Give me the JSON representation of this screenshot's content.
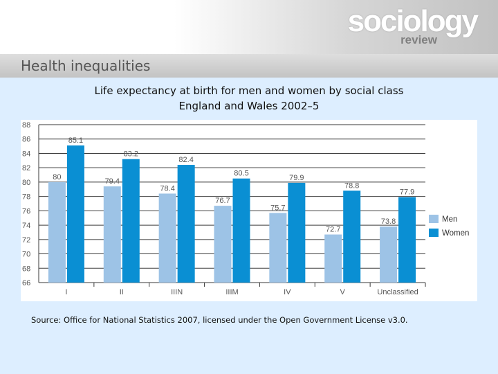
{
  "logo": {
    "main": "sociology",
    "sub": "review"
  },
  "slide_title": "Health inequalities",
  "chart_data": {
    "type": "bar",
    "title": "Life expectancy at birth for men and women by social class",
    "subtitle": "England and Wales 2002–5",
    "categories": [
      "I",
      "II",
      "IIIN",
      "IIIM",
      "IV",
      "V",
      "Unclassified"
    ],
    "series": [
      {
        "name": "Men",
        "color": "#9dc3e6",
        "values": [
          80,
          79.4,
          78.4,
          76.7,
          75.7,
          72.7,
          73.8
        ],
        "labels": [
          "80",
          "79.4",
          "78.4",
          "76.7",
          "75.7",
          "72.7",
          "73.8"
        ]
      },
      {
        "name": "Women",
        "color": "#0a8fd3",
        "values": [
          85.1,
          83.2,
          82.4,
          80.5,
          79.9,
          78.8,
          77.9
        ],
        "labels": [
          "85.1",
          "83.2",
          "82.4",
          "80.5",
          "79.9",
          "78.8",
          "77.9"
        ]
      }
    ],
    "ylim": [
      66,
      88
    ],
    "yticks": [
      "66",
      "68",
      "70",
      "72",
      "74",
      "76",
      "78",
      "80",
      "82",
      "84",
      "86",
      "88"
    ],
    "grid": true,
    "legend": "right",
    "xlabel": "",
    "ylabel": ""
  },
  "source_text": "Source:  Office for National Statistics 2007, licensed under the Open Government License v3.0."
}
